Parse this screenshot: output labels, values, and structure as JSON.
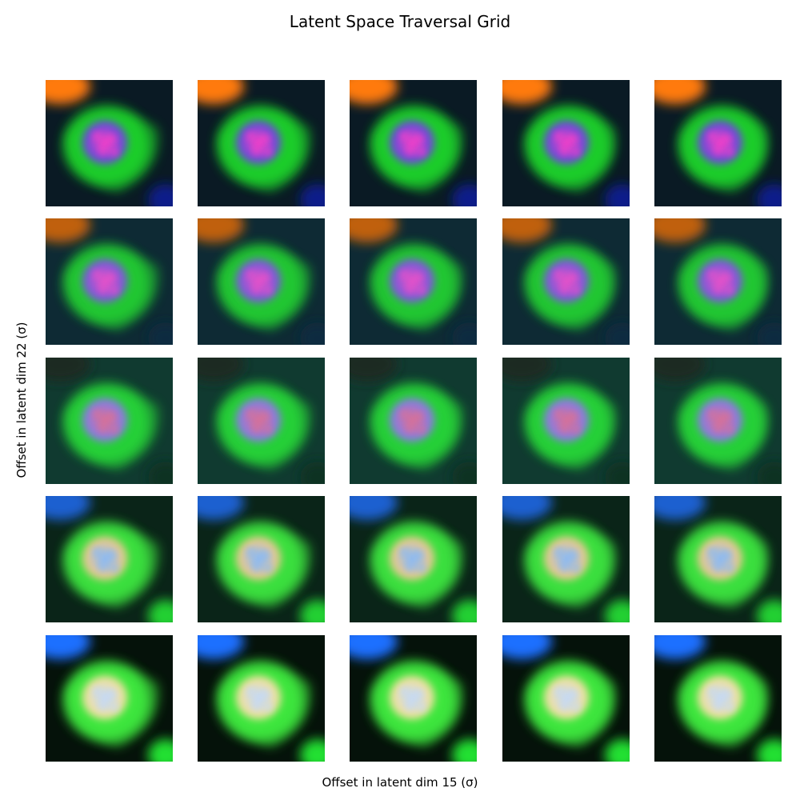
{
  "title": "Latent Space Traversal Grid",
  "xlabel": "Offset in latent dim 15 (σ)",
  "ylabel": "Offset in latent dim 22 (σ)",
  "grid": {
    "rows": 5,
    "cols": 5
  },
  "rows": [
    {
      "background": "#0a1a24",
      "cytoplasm": "#1fd62a",
      "nucleus_outer": "#6a4ad8",
      "nucleus_inner": "#ff40c8",
      "corner_top": "#ff7a10",
      "corner_bottom": "#0a1a8a"
    },
    {
      "background": "#0e2a34",
      "cytoplasm": "#22cf30",
      "nucleus_outer": "#7a5ad8",
      "nucleus_inner": "#f250c8",
      "corner_top": "#c06010",
      "corner_bottom": "#0a2a40"
    },
    {
      "background": "#103a30",
      "cytoplasm": "#28d838",
      "nucleus_outer": "#8a7ae0",
      "nucleus_inner": "#e07090",
      "corner_top": "#1a2a20",
      "corner_bottom": "#0a3020"
    },
    {
      "background": "#0a2418",
      "cytoplasm": "#3ce840",
      "nucleus_outer": "#e8c890",
      "nucleus_inner": "#80b8ff",
      "corner_top": "#1a60d0",
      "corner_bottom": "#20d030"
    },
    {
      "background": "#05120a",
      "cytoplasm": "#40f040",
      "nucleus_outer": "#f0e0a0",
      "nucleus_inner": "#c0d8ff",
      "corner_top": "#1a70ff",
      "corner_bottom": "#20e030"
    }
  ]
}
